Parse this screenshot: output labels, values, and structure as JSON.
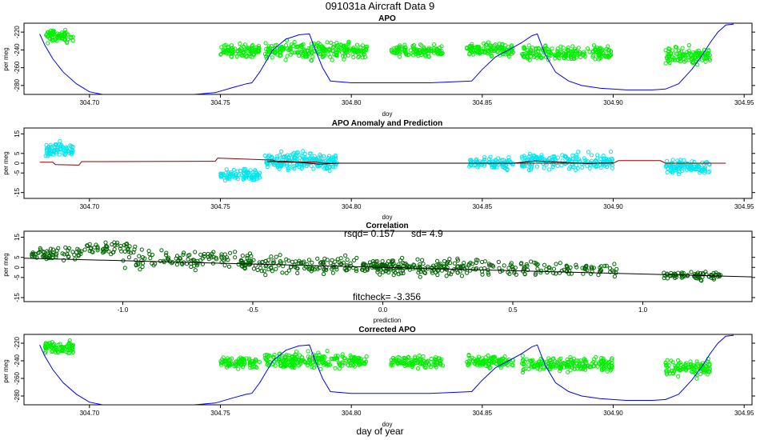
{
  "figure": {
    "title": "091031a   Aircraft Data 9",
    "bottom_label": "day of year"
  },
  "colors": {
    "apo_line": "#0000ff",
    "apo_points": "#00ee00",
    "anomaly_points": "#00e5ee",
    "prediction_line": "#8b0000",
    "prediction_smooth": "#000000",
    "correlation_points": "#006400",
    "fit_line": "#000000"
  },
  "chart_data": [
    {
      "type": "scatter",
      "title": "APO",
      "xlabel": "doy",
      "ylabel": "per meg",
      "xlim": [
        304.675,
        304.953
      ],
      "ylim": [
        -290,
        -210
      ],
      "x_ticks": [
        "304.70",
        "304.75",
        "304.80",
        "304.85",
        "304.90",
        "304.95"
      ],
      "x_tick_values": [
        304.7,
        304.75,
        304.8,
        304.85,
        304.9,
        304.95
      ],
      "y_ticks": [
        "-220",
        "-240",
        "-260",
        "-280"
      ],
      "y_tick_values": [
        -220,
        -240,
        -260,
        -280
      ],
      "series": [
        {
          "kind": "line",
          "color_key": "apo_line",
          "x": [
            304.681,
            304.683,
            304.686,
            304.69,
            304.695,
            304.7,
            304.705,
            304.72,
            304.74,
            304.748,
            304.755,
            304.76,
            304.762,
            304.765,
            304.77,
            304.775,
            304.78,
            304.784,
            304.786,
            304.789,
            304.792,
            304.8,
            304.83,
            304.846,
            304.85,
            304.855,
            304.86,
            304.865,
            304.869,
            304.871,
            304.874,
            304.878,
            304.883,
            304.888,
            304.895,
            304.905,
            304.915,
            304.92,
            304.925,
            304.93,
            304.934,
            304.937,
            304.94,
            304.943,
            304.946
          ],
          "y": [
            -222,
            -235,
            -250,
            -265,
            -278,
            -287,
            -290,
            -290,
            -290,
            -288,
            -282,
            -278,
            -277,
            -265,
            -240,
            -228,
            -223,
            -222,
            -238,
            -260,
            -275,
            -277,
            -277,
            -275,
            -262,
            -248,
            -240,
            -232,
            -224,
            -222,
            -245,
            -265,
            -275,
            -280,
            -283,
            -285,
            -285,
            -284,
            -278,
            -262,
            -246,
            -232,
            -220,
            -212,
            -211
          ]
        },
        {
          "kind": "points",
          "color_key": "apo_points",
          "clusters": [
            {
              "x_range": [
                304.683,
                304.694
              ],
              "y_center": -225,
              "y_spread": 10,
              "n": 70
            },
            {
              "x_range": [
                304.75,
                304.765
              ],
              "y_center": -241,
              "y_spread": 10,
              "n": 90
            },
            {
              "x_range": [
                304.767,
                304.8
              ],
              "y_center": -240,
              "y_spread": 14,
              "n": 190
            },
            {
              "x_range": [
                304.8,
                304.806
              ],
              "y_center": -241,
              "y_spread": 10,
              "n": 40
            },
            {
              "x_range": [
                304.815,
                304.835
              ],
              "y_center": -241,
              "y_spread": 9,
              "n": 110
            },
            {
              "x_range": [
                304.844,
                304.862
              ],
              "y_center": -240,
              "y_spread": 10,
              "n": 110
            },
            {
              "x_range": [
                304.865,
                304.9
              ],
              "y_center": -244,
              "y_spread": 12,
              "n": 190
            },
            {
              "x_range": [
                304.92,
                304.937
              ],
              "y_center": -247,
              "y_spread": 14,
              "n": 110
            }
          ]
        }
      ]
    },
    {
      "type": "scatter",
      "title": "APO Anomaly and Prediction",
      "xlabel": "doy",
      "ylabel": "per meg",
      "xlim": [
        304.675,
        304.953
      ],
      "ylim": [
        -18,
        18
      ],
      "x_ticks": [
        "304.70",
        "304.75",
        "304.80",
        "304.85",
        "304.90",
        "304.95"
      ],
      "x_tick_values": [
        304.7,
        304.75,
        304.8,
        304.85,
        304.9,
        304.95
      ],
      "y_ticks": [
        "15",
        "5",
        "0",
        "-5",
        "-15"
      ],
      "y_tick_values": [
        15,
        5,
        0,
        -5,
        -15
      ],
      "series": [
        {
          "kind": "line",
          "color_key": "prediction_line",
          "x": [
            304.681,
            304.686,
            304.687,
            304.696,
            304.697,
            304.748,
            304.749,
            304.77,
            304.772,
            304.786,
            304.79,
            304.9,
            304.902,
            304.918,
            304.92,
            304.943
          ],
          "y": [
            0.5,
            0.5,
            -0.7,
            -1.0,
            0.8,
            1.0,
            2.6,
            1.6,
            0.5,
            0.6,
            0.0,
            0.0,
            1.3,
            1.3,
            0.0,
            0.0
          ]
        },
        {
          "kind": "line",
          "color_key": "prediction_smooth",
          "x": [
            304.768,
            304.775,
            304.782,
            304.788,
            304.795,
            304.862,
            304.87,
            304.88,
            304.89,
            304.9
          ],
          "y": [
            0.8,
            1.0,
            0.2,
            -0.5,
            0.0,
            0.0,
            1.2,
            0.5,
            -0.2,
            0.3
          ]
        },
        {
          "kind": "points",
          "color_key": "anomaly_points",
          "clusters": [
            {
              "x_range": [
                304.683,
                304.694
              ],
              "y_center": 7,
              "y_spread": 5,
              "n": 70
            },
            {
              "x_range": [
                304.75,
                304.765
              ],
              "y_center": -6,
              "y_spread": 4,
              "n": 90
            },
            {
              "x_range": [
                304.767,
                304.795
              ],
              "y_center": 1,
              "y_spread": 7,
              "n": 190
            },
            {
              "x_range": [
                304.845,
                304.862
              ],
              "y_center": 0,
              "y_spread": 4,
              "n": 90
            },
            {
              "x_range": [
                304.865,
                304.9
              ],
              "y_center": 1,
              "y_spread": 6,
              "n": 170
            },
            {
              "x_range": [
                304.92,
                304.937
              ],
              "y_center": -2,
              "y_spread": 5,
              "n": 110
            }
          ]
        }
      ]
    },
    {
      "type": "scatter",
      "title": "Correlation",
      "xlabel": "prediction",
      "ylabel": "per meg",
      "xlim": [
        -1.38,
        1.42
      ],
      "ylim": [
        -17,
        18
      ],
      "x_ticks": [
        "-1.0",
        "-0.5",
        "0.0",
        "0.5",
        "1.0"
      ],
      "x_tick_values": [
        -1.0,
        -0.5,
        0.0,
        0.5,
        1.0
      ],
      "y_ticks": [
        "15",
        "5",
        "0",
        "-5",
        "-15"
      ],
      "y_tick_values": [
        15,
        5,
        0,
        -5,
        -15
      ],
      "stats": {
        "rsqd": "rsqd= 0.157",
        "sd": "sd= 4.9",
        "fitcheck": "fitcheck= -3.356"
      },
      "fit_line": {
        "x": [
          -1.38,
          1.42
        ],
        "y": [
          4.6,
          -4.7
        ]
      },
      "series": [
        {
          "kind": "points",
          "color_key": "correlation_points",
          "clusters": [
            {
              "x_range": [
                -1.35,
                -1.15
              ],
              "y_center": 7,
              "y_spread": 4,
              "n": 60
            },
            {
              "x_range": [
                -1.15,
                -0.95
              ],
              "y_center": 10,
              "y_spread": 5,
              "n": 50
            },
            {
              "x_range": [
                -1.0,
                -0.5
              ],
              "y_center": 4,
              "y_spread": 7,
              "n": 110
            },
            {
              "x_range": [
                -0.55,
                -0.1
              ],
              "y_center": 1,
              "y_spread": 6,
              "n": 130
            },
            {
              "x_range": [
                -0.08,
                0.08
              ],
              "y_center": 0,
              "y_spread": 6,
              "n": 90
            },
            {
              "x_range": [
                0.08,
                0.6
              ],
              "y_center": 0,
              "y_spread": 6,
              "n": 150
            },
            {
              "x_range": [
                0.6,
                0.9
              ],
              "y_center": -1,
              "y_spread": 5,
              "n": 60
            },
            {
              "x_range": [
                1.08,
                1.3
              ],
              "y_center": -4,
              "y_spread": 3,
              "n": 70
            }
          ]
        }
      ]
    },
    {
      "type": "scatter",
      "title": "Corrected APO",
      "xlabel": "doy",
      "ylabel": "per meg",
      "xlim": [
        304.675,
        304.953
      ],
      "ylim": [
        -290,
        -210
      ],
      "x_ticks": [
        "304.70",
        "304.75",
        "304.80",
        "304.85",
        "304.90",
        "304.95"
      ],
      "x_tick_values": [
        304.7,
        304.75,
        304.8,
        304.85,
        304.9,
        304.95
      ],
      "y_ticks": [
        "-220",
        "-240",
        "-260",
        "-280"
      ],
      "y_tick_values": [
        -220,
        -240,
        -260,
        -280
      ],
      "series": [
        {
          "kind": "line",
          "color_key": "apo_line",
          "x": [
            304.681,
            304.683,
            304.686,
            304.69,
            304.695,
            304.7,
            304.705,
            304.72,
            304.74,
            304.748,
            304.755,
            304.76,
            304.762,
            304.765,
            304.77,
            304.775,
            304.78,
            304.784,
            304.786,
            304.789,
            304.792,
            304.8,
            304.83,
            304.846,
            304.85,
            304.855,
            304.86,
            304.865,
            304.869,
            304.871,
            304.874,
            304.878,
            304.883,
            304.888,
            304.895,
            304.905,
            304.915,
            304.92,
            304.925,
            304.93,
            304.934,
            304.937,
            304.94,
            304.943,
            304.946
          ],
          "y": [
            -222,
            -235,
            -250,
            -265,
            -278,
            -287,
            -290,
            -290,
            -290,
            -288,
            -282,
            -278,
            -277,
            -265,
            -240,
            -228,
            -223,
            -222,
            -238,
            -260,
            -275,
            -277,
            -277,
            -275,
            -262,
            -248,
            -240,
            -232,
            -224,
            -222,
            -245,
            -265,
            -275,
            -280,
            -283,
            -285,
            -285,
            -284,
            -278,
            -262,
            -246,
            -232,
            -220,
            -212,
            -211
          ]
        },
        {
          "kind": "points",
          "color_key": "apo_points",
          "clusters": [
            {
              "x_range": [
                304.683,
                304.694
              ],
              "y_center": -225,
              "y_spread": 10,
              "n": 70
            },
            {
              "x_range": [
                304.75,
                304.765
              ],
              "y_center": -242,
              "y_spread": 9,
              "n": 90
            },
            {
              "x_range": [
                304.767,
                304.8
              ],
              "y_center": -240,
              "y_spread": 13,
              "n": 190
            },
            {
              "x_range": [
                304.8,
                304.806
              ],
              "y_center": -241,
              "y_spread": 10,
              "n": 40
            },
            {
              "x_range": [
                304.815,
                304.835
              ],
              "y_center": -241,
              "y_spread": 9,
              "n": 110
            },
            {
              "x_range": [
                304.844,
                304.862
              ],
              "y_center": -241,
              "y_spread": 9,
              "n": 110
            },
            {
              "x_range": [
                304.865,
                304.9
              ],
              "y_center": -244,
              "y_spread": 11,
              "n": 190
            },
            {
              "x_range": [
                304.92,
                304.937
              ],
              "y_center": -248,
              "y_spread": 13,
              "n": 110
            }
          ]
        }
      ]
    }
  ]
}
